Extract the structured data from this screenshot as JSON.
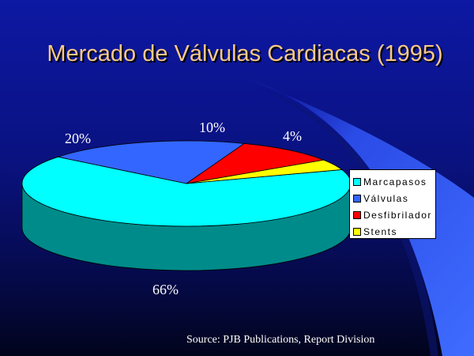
{
  "title": "Mercado de Válvulas Cardiacas (1995)",
  "source": "Source:  PJB Publications, Report Division",
  "colors": {
    "background_top": "#0d18a3",
    "background_bottom": "#02041c",
    "title": "#f6c88a",
    "swoosh": "#3a63f0"
  },
  "chart_data": {
    "type": "pie",
    "title": "Mercado de Válvulas Cardiacas (1995)",
    "style": "3d",
    "legend_position": "right",
    "labels": [
      "Marcapasos",
      "Válvulas",
      "Desfibrilador",
      "Stents"
    ],
    "values": [
      66,
      20,
      10,
      4
    ],
    "data_labels": [
      "66%",
      "20%",
      "10%",
      "4%"
    ],
    "colors": [
      "#00ffff",
      "#3366ff",
      "#ff0000",
      "#ffff00"
    ],
    "side_colors": [
      "#008b8b",
      "#1f3a99",
      "#8b0000",
      "#8b8b00"
    ]
  }
}
